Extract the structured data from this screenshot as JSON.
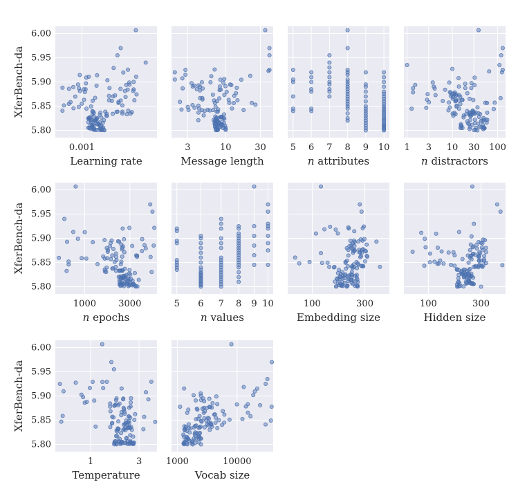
{
  "chart_data": {
    "type": "scatter",
    "ylabel": "XferBench-da",
    "ylim": [
      5.785,
      6.015
    ],
    "yticks": [
      "5.80",
      "5.85",
      "5.90",
      "5.95",
      "6.00"
    ],
    "ytick_values": [
      5.8,
      5.85,
      5.9,
      5.95,
      6.0
    ],
    "panels": [
      {
        "xlabel": "Learning rate",
        "xscale": "log",
        "xlim": [
          0.0003,
          0.03
        ],
        "xticks": [
          {
            "v": 0.001,
            "label": "0.001"
          }
        ],
        "seed": 11,
        "clusters": [
          {
            "n": 55,
            "x": [
              0.0013,
              0.0028
            ],
            "y": [
              5.8,
              5.84
            ]
          },
          {
            "n": 40,
            "x": [
              0.0028,
              0.012
            ],
            "y": [
              5.83,
              5.93
            ]
          },
          {
            "n": 28,
            "x": [
              0.0004,
              0.002
            ],
            "y": [
              5.84,
              5.92
            ]
          }
        ],
        "points": [
          [
            0.0115,
            6.007
          ],
          [
            0.0058,
            5.97
          ],
          [
            0.005,
            5.955
          ],
          [
            0.018,
            5.94
          ]
        ]
      },
      {
        "xlabel": "Message length",
        "xscale": "log",
        "xlim": [
          1.8,
          45
        ],
        "xticks": [
          {
            "v": 3,
            "label": "3"
          },
          {
            "v": 10,
            "label": "10"
          },
          {
            "v": 30,
            "label": "30"
          }
        ],
        "seed": 23,
        "clusters": [
          {
            "n": 45,
            "x": [
              7,
              10
            ],
            "y": [
              5.8,
              5.83
            ]
          },
          {
            "n": 40,
            "x": [
              4,
              16
            ],
            "y": [
              5.82,
              5.9
            ]
          },
          {
            "n": 30,
            "x": [
              2,
              40
            ],
            "y": [
              5.84,
              5.93
            ]
          }
        ],
        "points": [
          [
            35,
            6.007
          ],
          [
            40,
            5.97
          ],
          [
            40,
            5.955
          ],
          [
            2,
            5.92
          ],
          [
            2,
            5.905
          ],
          [
            2.8,
            5.925
          ],
          [
            2.8,
            5.915
          ],
          [
            40,
            5.925
          ]
        ]
      },
      {
        "xlabel": "attributes",
        "xlabel_italic": "n",
        "xscale": "linear",
        "xlim": [
          4.7,
          10.3
        ],
        "xticks": [
          {
            "v": 5,
            "label": "5"
          },
          {
            "v": 6,
            "label": "6"
          },
          {
            "v": 7,
            "label": "7"
          },
          {
            "v": 8,
            "label": "8"
          },
          {
            "v": 9,
            "label": "9"
          },
          {
            "v": 10,
            "label": "10"
          }
        ],
        "seed": 37,
        "discrete": true,
        "columns": [
          {
            "x": 5,
            "ys": [
              5.84,
              5.845,
              5.87,
              5.9,
              5.905,
              5.925
            ]
          },
          {
            "x": 6,
            "ys": [
              5.84,
              5.845,
              5.88,
              5.885,
              5.9,
              5.91,
              5.92
            ]
          },
          {
            "x": 7,
            "ys": [
              5.87,
              5.88,
              5.885,
              5.895,
              5.9,
              5.91,
              5.92,
              5.93,
              5.94,
              5.955
            ]
          },
          {
            "x": 8,
            "ys": [
              5.82,
              5.825,
              5.835,
              5.845,
              5.85,
              5.855,
              5.86,
              5.865,
              5.87,
              5.875,
              5.88,
              5.885,
              5.89,
              5.895,
              5.9,
              5.905,
              5.915,
              5.92,
              5.925,
              5.97,
              6.007
            ]
          },
          {
            "x": 9,
            "ys": [
              5.8,
              5.805,
              5.81,
              5.815,
              5.82,
              5.825,
              5.83,
              5.835,
              5.84,
              5.845,
              5.85,
              5.86,
              5.87,
              5.88,
              5.89,
              5.895,
              5.92
            ]
          },
          {
            "x": 10,
            "ys": [
              5.8,
              5.802,
              5.805,
              5.808,
              5.81,
              5.813,
              5.816,
              5.82,
              5.823,
              5.826,
              5.83,
              5.834,
              5.838,
              5.842,
              5.846,
              5.85,
              5.855,
              5.86,
              5.865,
              5.87,
              5.875,
              5.88,
              5.89,
              5.9,
              5.91,
              5.92
            ]
          }
        ]
      },
      {
        "xlabel": "distractors",
        "xlabel_italic": "n",
        "xscale": "log",
        "xlim": [
          0.85,
          150
        ],
        "xticks": [
          {
            "v": 1,
            "label": "1"
          },
          {
            "v": 3,
            "label": "3"
          },
          {
            "v": 10,
            "label": "10"
          },
          {
            "v": 30,
            "label": "30"
          },
          {
            "v": 100,
            "label": "100"
          }
        ],
        "seed": 41,
        "clusters": [
          {
            "n": 50,
            "x": [
              15,
              60
            ],
            "y": [
              5.8,
              5.84
            ]
          },
          {
            "n": 40,
            "x": [
              8,
              30
            ],
            "y": [
              5.83,
              5.9
            ]
          },
          {
            "n": 30,
            "x": [
              1,
              140
            ],
            "y": [
              5.84,
              5.93
            ]
          }
        ],
        "points": [
          [
            38,
            6.007
          ],
          [
            130,
            5.97
          ],
          [
            120,
            5.955
          ],
          [
            110,
            5.935
          ],
          [
            1,
            5.935
          ],
          [
            130,
            5.925
          ],
          [
            125,
            5.92
          ]
        ]
      },
      {
        "xlabel": "epochs",
        "xlabel_italic": "n",
        "xscale": "linear",
        "xlim": [
          -300,
          4200
        ],
        "xticks": [
          {
            "v": 1000,
            "label": "1000"
          },
          {
            "v": 3000,
            "label": "3000"
          }
        ],
        "seed": 53,
        "clusters": [
          {
            "n": 50,
            "x": [
              2500,
              3400
            ],
            "y": [
              5.8,
              5.83
            ]
          },
          {
            "n": 40,
            "x": [
              1800,
              2800
            ],
            "y": [
              5.83,
              5.9
            ]
          },
          {
            "n": 30,
            "x": [
              -200,
              4100
            ],
            "y": [
              5.83,
              5.93
            ]
          }
        ],
        "points": [
          [
            600,
            6.007
          ],
          [
            3900,
            5.97
          ],
          [
            4000,
            5.955
          ],
          [
            100,
            5.94
          ]
        ]
      },
      {
        "xlabel": "values",
        "xlabel_italic": "n",
        "xscale": "log",
        "xlim": [
          4.8,
          10.4
        ],
        "xticks": [
          {
            "v": 5,
            "label": "5"
          },
          {
            "v": 6,
            "label": "6"
          },
          {
            "v": 7,
            "label": "7"
          },
          {
            "v": 8,
            "label": "8"
          },
          {
            "v": 9,
            "label": "9"
          },
          {
            "v": 10,
            "label": "10"
          }
        ],
        "seed": 61,
        "discrete": true,
        "columns": [
          {
            "x": 5,
            "ys": [
              5.835,
              5.84,
              5.845,
              5.85,
              5.855,
              5.89,
              5.895,
              5.915,
              5.92
            ]
          },
          {
            "x": 6,
            "ys": [
              5.8,
              5.803,
              5.806,
              5.809,
              5.812,
              5.815,
              5.818,
              5.821,
              5.824,
              5.827,
              5.83,
              5.835,
              5.84,
              5.85,
              5.86,
              5.87,
              5.88,
              5.89,
              5.9,
              5.905
            ]
          },
          {
            "x": 7,
            "ys": [
              5.8,
              5.805,
              5.81,
              5.815,
              5.82,
              5.825,
              5.83,
              5.835,
              5.84,
              5.845,
              5.85,
              5.855,
              5.86,
              5.88,
              5.89,
              5.9,
              5.92,
              5.93,
              5.94
            ]
          },
          {
            "x": 8,
            "ys": [
              5.81,
              5.82,
              5.83,
              5.84,
              5.845,
              5.85,
              5.855,
              5.86,
              5.865,
              5.87,
              5.875,
              5.88,
              5.885,
              5.89,
              5.895,
              5.9,
              5.905,
              5.91,
              5.92,
              5.925
            ]
          },
          {
            "x": 9,
            "ys": [
              5.845,
              5.865,
              5.885,
              5.905,
              5.925,
              6.007
            ]
          },
          {
            "x": 10,
            "ys": [
              5.845,
              5.875,
              5.89,
              5.905,
              5.92,
              5.925,
              5.93,
              5.955,
              5.97
            ]
          }
        ]
      },
      {
        "xlabel": "Embedding size",
        "xscale": "log",
        "xlim": [
          60,
          500
        ],
        "xticks": [
          {
            "v": 100,
            "label": "100"
          },
          {
            "v": 300,
            "label": "300"
          }
        ],
        "seed": 71,
        "clusters": [
          {
            "n": 55,
            "x": [
              160,
              260
            ],
            "y": [
              5.8,
              5.84
            ]
          },
          {
            "n": 40,
            "x": [
              200,
              320
            ],
            "y": [
              5.84,
              5.9
            ]
          },
          {
            "n": 30,
            "x": [
              70,
              480
            ],
            "y": [
              5.84,
              5.93
            ]
          }
        ],
        "points": [
          [
            120,
            6.007
          ],
          [
            270,
            5.97
          ],
          [
            280,
            5.955
          ]
        ]
      },
      {
        "xlabel": "Hidden size",
        "xscale": "log",
        "xlim": [
          60,
          500
        ],
        "xticks": [
          {
            "v": 100,
            "label": "100"
          },
          {
            "v": 300,
            "label": "300"
          }
        ],
        "seed": 83,
        "clusters": [
          {
            "n": 55,
            "x": [
              180,
              260
            ],
            "y": [
              5.8,
              5.84
            ]
          },
          {
            "n": 40,
            "x": [
              230,
              340
            ],
            "y": [
              5.84,
              5.9
            ]
          },
          {
            "n": 30,
            "x": [
              70,
              480
            ],
            "y": [
              5.84,
              5.93
            ]
          }
        ],
        "points": [
          [
            250,
            6.007
          ],
          [
            420,
            5.97
          ],
          [
            450,
            5.955
          ],
          [
            300,
            5.8
          ]
        ]
      },
      {
        "xlabel": "Temperature",
        "xscale": "log",
        "xlim": [
          0.45,
          4.5
        ],
        "xticks": [
          {
            "v": 1,
            "label": "1"
          },
          {
            "v": 3,
            "label": "3"
          }
        ],
        "seed": 97,
        "clusters": [
          {
            "n": 50,
            "x": [
              1.7,
              2.7
            ],
            "y": [
              5.8,
              5.84
            ]
          },
          {
            "n": 35,
            "x": [
              1.5,
              2.5
            ],
            "y": [
              5.84,
              5.9
            ]
          },
          {
            "n": 30,
            "x": [
              0.5,
              4.4
            ],
            "y": [
              5.83,
              5.93
            ]
          }
        ],
        "points": [
          [
            1.3,
            6.007
          ],
          [
            1.6,
            5.97
          ],
          [
            1.7,
            5.955
          ],
          [
            0.5,
            5.925
          ]
        ]
      },
      {
        "xlabel": "Vocab size",
        "xscale": "log",
        "xlim": [
          800,
          40000
        ],
        "xticks": [
          {
            "v": 1000,
            "label": "1000"
          },
          {
            "v": 10000,
            "label": "10000"
          }
        ],
        "seed": 101,
        "clusters": [
          {
            "n": 50,
            "x": [
              1200,
              2500
            ],
            "y": [
              5.8,
              5.84
            ]
          },
          {
            "n": 40,
            "x": [
              2000,
              6000
            ],
            "y": [
              5.83,
              5.9
            ]
          },
          {
            "n": 30,
            "x": [
              900,
              38000
            ],
            "y": [
              5.84,
              5.93
            ]
          }
        ],
        "points": [
          [
            8000,
            6.007
          ],
          [
            38000,
            5.97
          ],
          [
            32000,
            5.935
          ],
          [
            30000,
            5.925
          ]
        ]
      }
    ]
  }
}
